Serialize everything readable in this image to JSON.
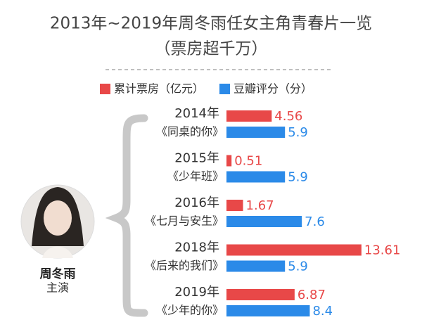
{
  "chart_data": {
    "type": "bar",
    "orientation": "horizontal",
    "title": "2013年~2019年周冬雨任女主角青春片一览",
    "subtitle": "（票房超千万）",
    "categories": [
      "2014年",
      "2015年",
      "2016年",
      "2018年",
      "2019年"
    ],
    "films": [
      "《同桌的你》",
      "《少年班》",
      "《七月与安生》",
      "《后来的我们》",
      "《少年的你》"
    ],
    "series": [
      {
        "name": "累计票房（亿元）",
        "color": "#e84848",
        "values": [
          4.56,
          0.51,
          1.67,
          13.61,
          6.87
        ]
      },
      {
        "name": "豆瓣评分（分）",
        "color": "#2b8ae8",
        "values": [
          5.9,
          5.9,
          7.6,
          5.9,
          8.4
        ]
      }
    ],
    "star": {
      "name": "周冬雨",
      "role": "主演"
    }
  }
}
